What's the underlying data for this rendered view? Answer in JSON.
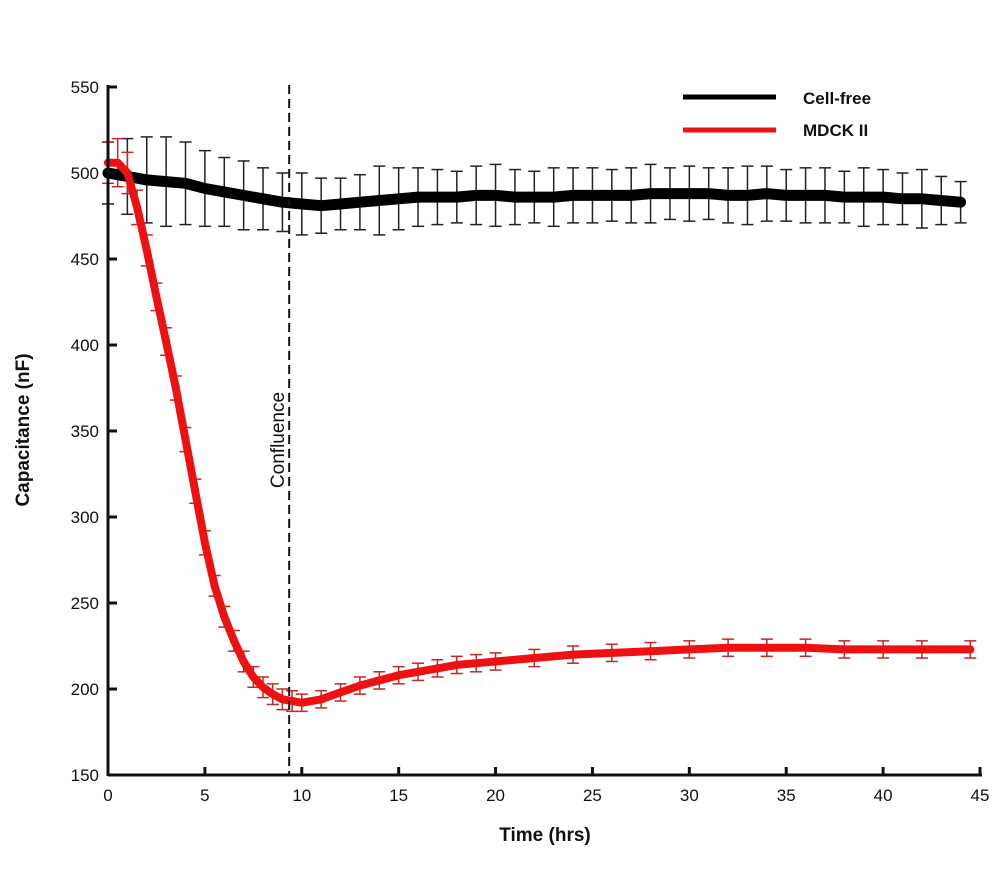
{
  "chart_data": {
    "type": "line",
    "title": "",
    "xlabel": "Time (hrs)",
    "ylabel": "Capacitance (nF)",
    "xlim": [
      0,
      45
    ],
    "ylim": [
      150,
      550
    ],
    "xticks": [
      "0",
      "5",
      "10",
      "15",
      "20",
      "25",
      "30",
      "35",
      "40",
      "45"
    ],
    "yticks": [
      "150",
      "200",
      "250",
      "300",
      "350",
      "400",
      "450",
      "500",
      "550"
    ],
    "grid": false,
    "legend_position": "top-right",
    "annotation": {
      "label": "Confluence",
      "x": 9.35,
      "style": "dashed vertical line"
    },
    "series": [
      {
        "name": "Cell-free",
        "color": "#000000",
        "x": [
          0,
          1,
          2,
          3,
          4,
          5,
          6,
          7,
          8,
          9,
          10,
          11,
          12,
          13,
          14,
          15,
          16,
          17,
          18,
          19,
          20,
          21,
          22,
          23,
          24,
          25,
          26,
          27,
          28,
          29,
          30,
          31,
          32,
          33,
          34,
          35,
          36,
          37,
          38,
          39,
          40,
          41,
          42,
          43,
          44
        ],
        "y": [
          500,
          498,
          496,
          495,
          494,
          491,
          489,
          487,
          485,
          483,
          482,
          481,
          482,
          483,
          484,
          485,
          486,
          486,
          486,
          487,
          487,
          486,
          486,
          486,
          487,
          487,
          487,
          487,
          488,
          488,
          488,
          488,
          487,
          487,
          488,
          487,
          487,
          487,
          486,
          486,
          486,
          485,
          485,
          484,
          483
        ],
        "error": [
          18,
          22,
          25,
          26,
          24,
          22,
          20,
          20,
          18,
          17,
          18,
          16,
          15,
          16,
          20,
          18,
          17,
          16,
          15,
          17,
          18,
          16,
          15,
          17,
          16,
          16,
          15,
          16,
          17,
          15,
          16,
          15,
          16,
          17,
          16,
          15,
          16,
          16,
          15,
          17,
          16,
          15,
          17,
          14,
          12
        ]
      },
      {
        "name": "MDCK II",
        "color": "#ee1111",
        "x": [
          0,
          0.5,
          1,
          1.5,
          2,
          2.5,
          3,
          3.5,
          4,
          4.5,
          5,
          5.5,
          6,
          6.5,
          7,
          7.5,
          8,
          8.5,
          9,
          9.5,
          10,
          11,
          12,
          13,
          14,
          15,
          16,
          17,
          18,
          19,
          20,
          22,
          24,
          26,
          28,
          30,
          32,
          34,
          36,
          38,
          40,
          42,
          44.5
        ],
        "y": [
          506,
          506,
          500,
          480,
          455,
          428,
          402,
          375,
          345,
          315,
          285,
          260,
          242,
          228,
          216,
          207,
          201,
          197,
          194,
          193,
          192,
          194,
          198,
          202,
          205,
          208,
          210,
          212,
          214,
          215,
          216,
          218,
          220,
          221,
          222,
          223,
          224,
          224,
          224,
          223,
          223,
          223,
          223
        ],
        "error": [
          12,
          14,
          12,
          10,
          9,
          8,
          8,
          7,
          7,
          7,
          7,
          6,
          6,
          6,
          6,
          6,
          6,
          6,
          6,
          6,
          5,
          5,
          5,
          5,
          5,
          5,
          5,
          5,
          5,
          5,
          5,
          5,
          5,
          5,
          5,
          5,
          5,
          5,
          5,
          5,
          5,
          5,
          5
        ]
      }
    ]
  }
}
